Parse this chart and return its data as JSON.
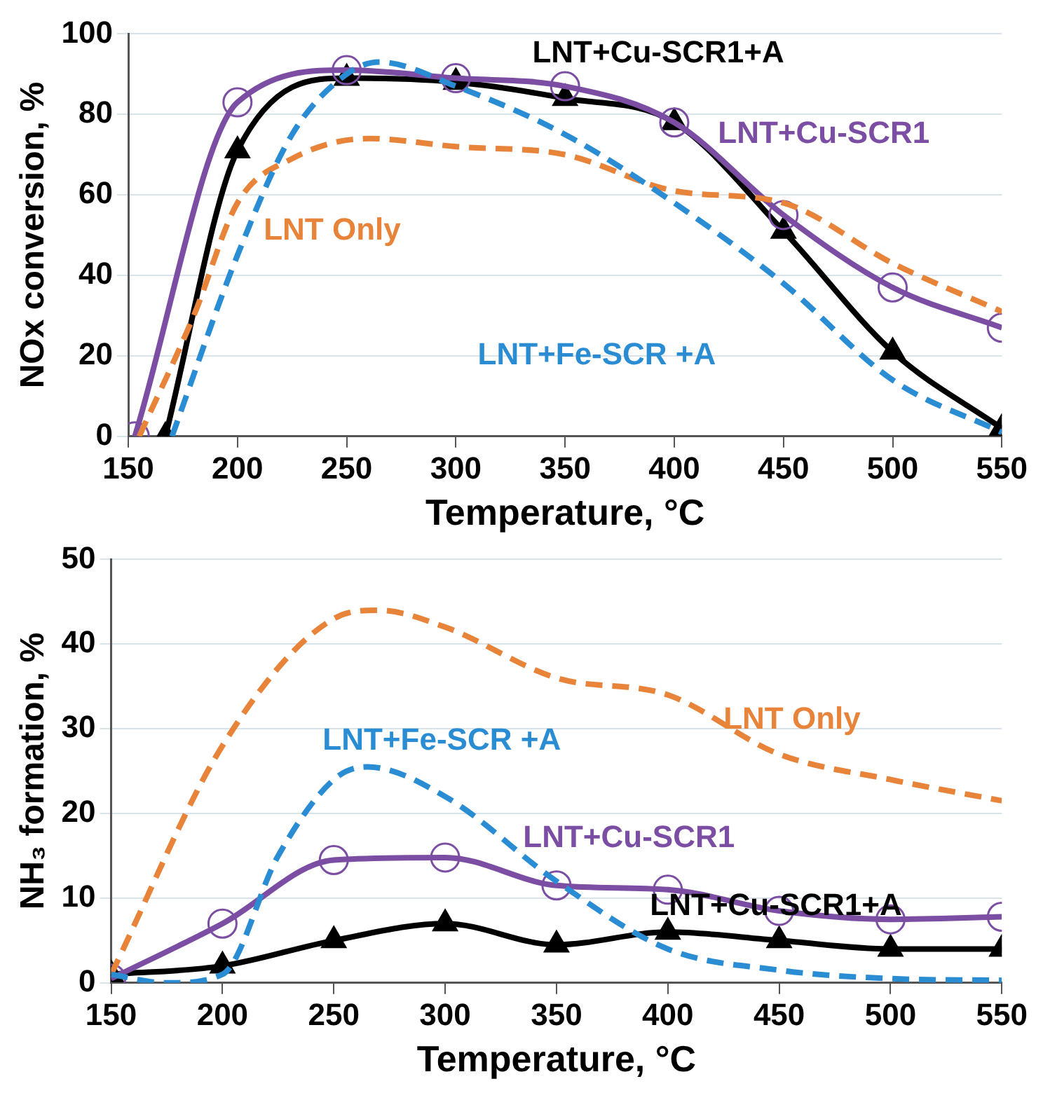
{
  "chart_data": [
    {
      "type": "line",
      "xlabel": "Temperature, °C",
      "ylabel": "NOx conversion, %",
      "xlim": [
        150,
        550
      ],
      "xticks": [
        150,
        200,
        250,
        300,
        350,
        400,
        450,
        500,
        550
      ],
      "ylim": [
        0,
        100
      ],
      "yticks": [
        0,
        20,
        40,
        60,
        80,
        100
      ],
      "grid": "y",
      "legend": false,
      "series": [
        {
          "name": "LNT+Cu-SCR1+A",
          "color": "#000000",
          "marker": "triangle",
          "line_style": "solid",
          "x": [
            167,
            200,
            250,
            300,
            350,
            400,
            450,
            500,
            550
          ],
          "values": [
            0,
            71,
            89,
            88,
            84,
            78,
            51,
            21,
            2
          ]
        },
        {
          "name": "LNT+Cu-SCR1",
          "color": "#7b4ea3",
          "marker": "circle",
          "line_style": "solid",
          "x": [
            153,
            200,
            250,
            300,
            350,
            400,
            450,
            500,
            550
          ],
          "values": [
            0,
            83,
            91,
            89,
            87,
            78,
            55,
            37,
            27
          ]
        },
        {
          "name": "LNT Only",
          "color": "#e8833a",
          "marker": "none",
          "line_style": "dashed",
          "x": [
            155,
            180,
            200,
            225,
            260,
            300,
            350,
            400,
            450,
            500,
            550
          ],
          "values": [
            0,
            30,
            58,
            69,
            74,
            72,
            70,
            61,
            58,
            43,
            31
          ]
        },
        {
          "name": "LNT+Fe-SCR +A",
          "color": "#2a8dd4",
          "marker": "none",
          "line_style": "dashed",
          "x": [
            170,
            200,
            225,
            250,
            265,
            300,
            350,
            400,
            450,
            500,
            550
          ],
          "values": [
            0,
            45,
            75,
            90,
            93,
            87,
            75,
            58,
            38,
            14,
            1
          ]
        }
      ]
    },
    {
      "type": "line",
      "xlabel": "Temperature, °C",
      "ylabel": "NH₃ formation, %",
      "xlim": [
        150,
        550
      ],
      "xticks": [
        150,
        200,
        250,
        300,
        350,
        400,
        450,
        500,
        550
      ],
      "ylim": [
        0,
        50
      ],
      "yticks": [
        0,
        10,
        20,
        30,
        40,
        50
      ],
      "grid": "y",
      "legend": false,
      "series": [
        {
          "name": "LNT Only",
          "color": "#e8833a",
          "marker": "none",
          "line_style": "dashed",
          "x": [
            150,
            200,
            250,
            270,
            300,
            350,
            400,
            450,
            500,
            550
          ],
          "values": [
            1,
            28,
            43,
            44,
            42,
            36,
            34,
            27,
            24,
            21.5
          ]
        },
        {
          "name": "LNT+Fe-SCR +A",
          "color": "#2a8dd4",
          "marker": "none",
          "line_style": "dashed",
          "x": [
            150,
            175,
            200,
            225,
            250,
            265,
            300,
            350,
            400,
            450,
            500,
            550
          ],
          "values": [
            1,
            0,
            1,
            15,
            24,
            25.5,
            22,
            12,
            4,
            1.5,
            0.5,
            0.3
          ]
        },
        {
          "name": "LNT+Cu-SCR1",
          "color": "#7b4ea3",
          "marker": "circle",
          "line_style": "solid",
          "x": [
            150,
            200,
            250,
            300,
            350,
            400,
            450,
            500,
            550
          ],
          "values": [
            0.5,
            7,
            14.5,
            14.8,
            11.5,
            11,
            8.5,
            7.5,
            7.8
          ]
        },
        {
          "name": "LNT+Cu-SCR1+A",
          "color": "#000000",
          "marker": "triangle",
          "line_style": "solid",
          "x": [
            150,
            200,
            250,
            300,
            350,
            400,
            450,
            500,
            550
          ],
          "values": [
            1,
            2,
            5,
            7,
            4.5,
            6,
            5,
            4,
            4
          ]
        }
      ]
    }
  ]
}
